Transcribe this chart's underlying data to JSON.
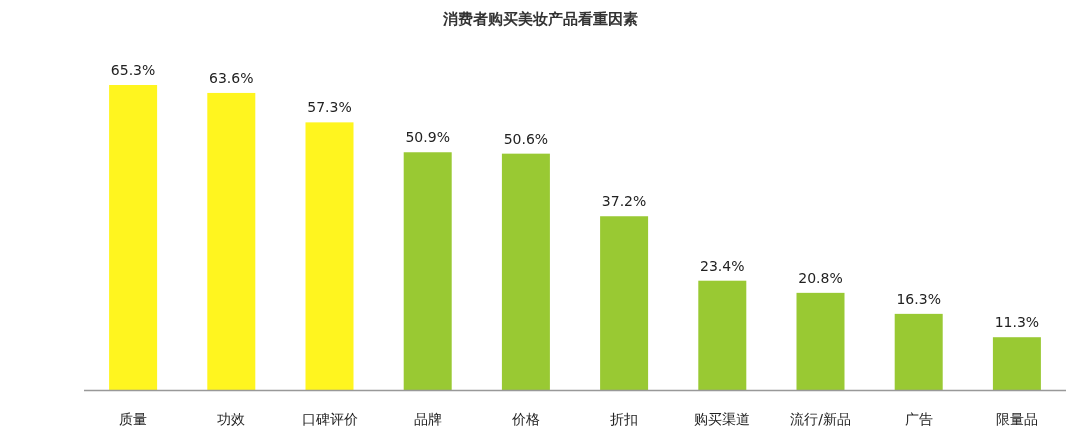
{
  "chart_data": {
    "type": "bar",
    "title": "消费者购买美妆产品看重因素",
    "categories": [
      "质量",
      "功效",
      "口碑评价",
      "品牌",
      "价格",
      "折扣",
      "购买渠道",
      "流行/新品",
      "广告",
      "限量品"
    ],
    "values": [
      65.3,
      63.6,
      57.3,
      50.9,
      50.6,
      37.2,
      23.4,
      20.8,
      16.3,
      11.3
    ],
    "value_labels": [
      "65.3%",
      "63.6%",
      "57.3%",
      "50.9%",
      "50.6%",
      "37.2%",
      "23.4%",
      "20.8%",
      "16.3%",
      "11.3%"
    ],
    "colors": [
      "#fff51f",
      "#fff51f",
      "#fff51f",
      "#99c933",
      "#99c933",
      "#99c933",
      "#99c933",
      "#99c933",
      "#99c933",
      "#99c933"
    ]
  }
}
